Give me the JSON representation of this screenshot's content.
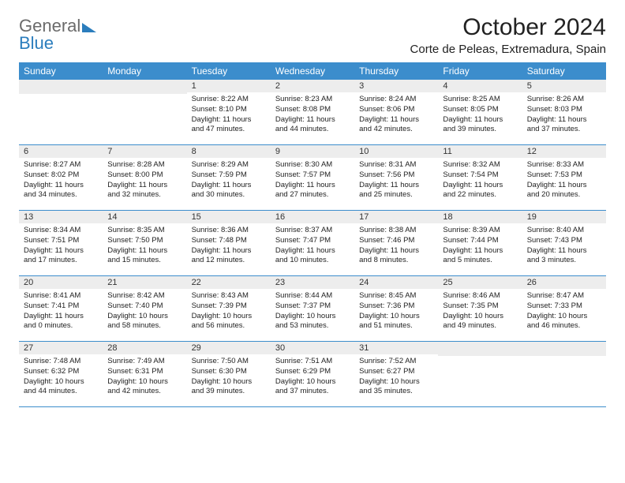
{
  "logo": {
    "part1": "General",
    "part2": "Blue"
  },
  "title": "October 2024",
  "subtitle": "Corte de Peleas, Extremadura, Spain",
  "colors": {
    "header_bg": "#3c8dcc",
    "header_text": "#ffffff",
    "daynum_bg": "#ededed",
    "border": "#3c8dcc",
    "logo_gray": "#6b6b6b",
    "logo_blue": "#2b7dbd"
  },
  "dow": [
    "Sunday",
    "Monday",
    "Tuesday",
    "Wednesday",
    "Thursday",
    "Friday",
    "Saturday"
  ],
  "weeks": [
    [
      {
        "day": "",
        "lines": []
      },
      {
        "day": "",
        "lines": []
      },
      {
        "day": "1",
        "lines": [
          "Sunrise: 8:22 AM",
          "Sunset: 8:10 PM",
          "Daylight: 11 hours",
          "and 47 minutes."
        ]
      },
      {
        "day": "2",
        "lines": [
          "Sunrise: 8:23 AM",
          "Sunset: 8:08 PM",
          "Daylight: 11 hours",
          "and 44 minutes."
        ]
      },
      {
        "day": "3",
        "lines": [
          "Sunrise: 8:24 AM",
          "Sunset: 8:06 PM",
          "Daylight: 11 hours",
          "and 42 minutes."
        ]
      },
      {
        "day": "4",
        "lines": [
          "Sunrise: 8:25 AM",
          "Sunset: 8:05 PM",
          "Daylight: 11 hours",
          "and 39 minutes."
        ]
      },
      {
        "day": "5",
        "lines": [
          "Sunrise: 8:26 AM",
          "Sunset: 8:03 PM",
          "Daylight: 11 hours",
          "and 37 minutes."
        ]
      }
    ],
    [
      {
        "day": "6",
        "lines": [
          "Sunrise: 8:27 AM",
          "Sunset: 8:02 PM",
          "Daylight: 11 hours",
          "and 34 minutes."
        ]
      },
      {
        "day": "7",
        "lines": [
          "Sunrise: 8:28 AM",
          "Sunset: 8:00 PM",
          "Daylight: 11 hours",
          "and 32 minutes."
        ]
      },
      {
        "day": "8",
        "lines": [
          "Sunrise: 8:29 AM",
          "Sunset: 7:59 PM",
          "Daylight: 11 hours",
          "and 30 minutes."
        ]
      },
      {
        "day": "9",
        "lines": [
          "Sunrise: 8:30 AM",
          "Sunset: 7:57 PM",
          "Daylight: 11 hours",
          "and 27 minutes."
        ]
      },
      {
        "day": "10",
        "lines": [
          "Sunrise: 8:31 AM",
          "Sunset: 7:56 PM",
          "Daylight: 11 hours",
          "and 25 minutes."
        ]
      },
      {
        "day": "11",
        "lines": [
          "Sunrise: 8:32 AM",
          "Sunset: 7:54 PM",
          "Daylight: 11 hours",
          "and 22 minutes."
        ]
      },
      {
        "day": "12",
        "lines": [
          "Sunrise: 8:33 AM",
          "Sunset: 7:53 PM",
          "Daylight: 11 hours",
          "and 20 minutes."
        ]
      }
    ],
    [
      {
        "day": "13",
        "lines": [
          "Sunrise: 8:34 AM",
          "Sunset: 7:51 PM",
          "Daylight: 11 hours",
          "and 17 minutes."
        ]
      },
      {
        "day": "14",
        "lines": [
          "Sunrise: 8:35 AM",
          "Sunset: 7:50 PM",
          "Daylight: 11 hours",
          "and 15 minutes."
        ]
      },
      {
        "day": "15",
        "lines": [
          "Sunrise: 8:36 AM",
          "Sunset: 7:48 PM",
          "Daylight: 11 hours",
          "and 12 minutes."
        ]
      },
      {
        "day": "16",
        "lines": [
          "Sunrise: 8:37 AM",
          "Sunset: 7:47 PM",
          "Daylight: 11 hours",
          "and 10 minutes."
        ]
      },
      {
        "day": "17",
        "lines": [
          "Sunrise: 8:38 AM",
          "Sunset: 7:46 PM",
          "Daylight: 11 hours",
          "and 8 minutes."
        ]
      },
      {
        "day": "18",
        "lines": [
          "Sunrise: 8:39 AM",
          "Sunset: 7:44 PM",
          "Daylight: 11 hours",
          "and 5 minutes."
        ]
      },
      {
        "day": "19",
        "lines": [
          "Sunrise: 8:40 AM",
          "Sunset: 7:43 PM",
          "Daylight: 11 hours",
          "and 3 minutes."
        ]
      }
    ],
    [
      {
        "day": "20",
        "lines": [
          "Sunrise: 8:41 AM",
          "Sunset: 7:41 PM",
          "Daylight: 11 hours",
          "and 0 minutes."
        ]
      },
      {
        "day": "21",
        "lines": [
          "Sunrise: 8:42 AM",
          "Sunset: 7:40 PM",
          "Daylight: 10 hours",
          "and 58 minutes."
        ]
      },
      {
        "day": "22",
        "lines": [
          "Sunrise: 8:43 AM",
          "Sunset: 7:39 PM",
          "Daylight: 10 hours",
          "and 56 minutes."
        ]
      },
      {
        "day": "23",
        "lines": [
          "Sunrise: 8:44 AM",
          "Sunset: 7:37 PM",
          "Daylight: 10 hours",
          "and 53 minutes."
        ]
      },
      {
        "day": "24",
        "lines": [
          "Sunrise: 8:45 AM",
          "Sunset: 7:36 PM",
          "Daylight: 10 hours",
          "and 51 minutes."
        ]
      },
      {
        "day": "25",
        "lines": [
          "Sunrise: 8:46 AM",
          "Sunset: 7:35 PM",
          "Daylight: 10 hours",
          "and 49 minutes."
        ]
      },
      {
        "day": "26",
        "lines": [
          "Sunrise: 8:47 AM",
          "Sunset: 7:33 PM",
          "Daylight: 10 hours",
          "and 46 minutes."
        ]
      }
    ],
    [
      {
        "day": "27",
        "lines": [
          "Sunrise: 7:48 AM",
          "Sunset: 6:32 PM",
          "Daylight: 10 hours",
          "and 44 minutes."
        ]
      },
      {
        "day": "28",
        "lines": [
          "Sunrise: 7:49 AM",
          "Sunset: 6:31 PM",
          "Daylight: 10 hours",
          "and 42 minutes."
        ]
      },
      {
        "day": "29",
        "lines": [
          "Sunrise: 7:50 AM",
          "Sunset: 6:30 PM",
          "Daylight: 10 hours",
          "and 39 minutes."
        ]
      },
      {
        "day": "30",
        "lines": [
          "Sunrise: 7:51 AM",
          "Sunset: 6:29 PM",
          "Daylight: 10 hours",
          "and 37 minutes."
        ]
      },
      {
        "day": "31",
        "lines": [
          "Sunrise: 7:52 AM",
          "Sunset: 6:27 PM",
          "Daylight: 10 hours",
          "and 35 minutes."
        ]
      },
      {
        "day": "",
        "lines": []
      },
      {
        "day": "",
        "lines": []
      }
    ]
  ]
}
